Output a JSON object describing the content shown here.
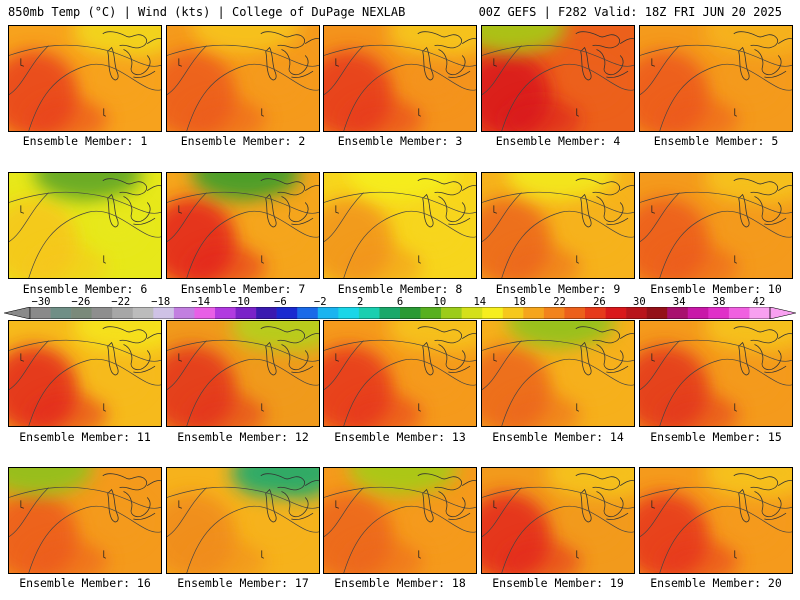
{
  "header": {
    "left": "850mb Temp (°C) | Wind (kts) | College of DuPage NEXLAB",
    "right": "00Z GEFS | F282 Valid: 18Z FRI JUN 20 2025"
  },
  "members": [
    {
      "label": "Ensemble Member: 1",
      "base": "#f7a21d",
      "warm": "#e8401b",
      "cool": "#f2d81e",
      "coolSide": "ne"
    },
    {
      "label": "Ensemble Member: 2",
      "base": "#f59a1c",
      "warm": "#ec5a1b",
      "cool": "#f7c51c",
      "coolSide": "n"
    },
    {
      "label": "Ensemble Member: 3",
      "base": "#f4931c",
      "warm": "#e6391a",
      "cool": "#f6c81c",
      "coolSide": "ne"
    },
    {
      "label": "Ensemble Member: 4",
      "base": "#ec601b",
      "warm": "#d9181b",
      "cool": "#a5cc19",
      "coolSide": "nw"
    },
    {
      "label": "Ensemble Member: 5",
      "base": "#f49a1c",
      "warm": "#ec571b",
      "cool": "#f6b41c",
      "coolSide": "ne"
    },
    {
      "label": "Ensemble Member: 6",
      "base": "#e7e81a",
      "warm": "#f7c51c",
      "cool": "#5fa625",
      "coolSide": "n"
    },
    {
      "label": "Ensemble Member: 7",
      "base": "#f5a51c",
      "warm": "#e3231b",
      "cool": "#3e9e2b",
      "coolSide": "n"
    },
    {
      "label": "Ensemble Member: 8",
      "base": "#f7d51d",
      "warm": "#f2921c",
      "cool": "#f5ef1e",
      "coolSide": "n"
    },
    {
      "label": "Ensemble Member: 9",
      "base": "#f6b21c",
      "warm": "#ec651b",
      "cool": "#f3ea1e",
      "coolSide": "n"
    },
    {
      "label": "Ensemble Member: 10",
      "base": "#f49a1c",
      "warm": "#ec5a1b",
      "cool": "#f6c41c",
      "coolSide": "ne"
    },
    {
      "label": "Ensemble Member: 11",
      "base": "#f6ba1c",
      "warm": "#e3261b",
      "cool": "#f5e41e",
      "coolSide": "ne"
    },
    {
      "label": "Ensemble Member: 12",
      "base": "#f09a1c",
      "warm": "#e3301b",
      "cool": "#b4d11a",
      "coolSide": "ne"
    },
    {
      "label": "Ensemble Member: 13",
      "base": "#f59a1c",
      "warm": "#e6361a",
      "cool": "#f6c41c",
      "coolSide": "ne"
    },
    {
      "label": "Ensemble Member: 14",
      "base": "#f6b01c",
      "warm": "#ec651b",
      "cool": "#8fc31e",
      "coolSide": "n"
    },
    {
      "label": "Ensemble Member: 15",
      "base": "#f49a1c",
      "warm": "#e3361b",
      "cool": "#f6c41c",
      "coolSide": "ne"
    },
    {
      "label": "Ensemble Member: 16",
      "base": "#f49a1c",
      "warm": "#ec5a1b",
      "cool": "#8fc31e",
      "coolSide": "nw"
    },
    {
      "label": "Ensemble Member: 17",
      "base": "#f6b21c",
      "warm": "#f08a1c",
      "cool": "#1faa6e",
      "coolSide": "ne"
    },
    {
      "label": "Ensemble Member: 18",
      "base": "#f59a1c",
      "warm": "#ec651b",
      "cool": "#a5cc19",
      "coolSide": "n"
    },
    {
      "label": "Ensemble Member: 19",
      "base": "#f29a1c",
      "warm": "#e3261b",
      "cool": "#f6c41c",
      "coolSide": "ne"
    },
    {
      "label": "Ensemble Member: 20",
      "base": "#f59a1c",
      "warm": "#e6341a",
      "cool": "#f6c41c",
      "coolSide": "ne"
    }
  ],
  "colorbar": {
    "ticks": [
      "-30",
      "-26",
      "-22",
      "-18",
      "-14",
      "-10",
      "-6",
      "-2",
      "2",
      "6",
      "10",
      "14",
      "18",
      "22",
      "26",
      "30",
      "34",
      "38",
      "42"
    ],
    "colors": [
      "#8a8a8a",
      "#6f8f86",
      "#7a8a7a",
      "#8e8e8e",
      "#a7a7a7",
      "#bcbcbc",
      "#cfc2e6",
      "#c27fe0",
      "#e85fe6",
      "#b13ae0",
      "#7a22c8",
      "#3a1ab0",
      "#1a2ad0",
      "#1a6ae8",
      "#1ab4f0",
      "#1ad6e8",
      "#1acfb0",
      "#1aa86a",
      "#2a9a34",
      "#58b020",
      "#9ccc1a",
      "#d4e01a",
      "#f6ee1e",
      "#f6c81c",
      "#f5a51c",
      "#f2831c",
      "#ec601b",
      "#e63a1b",
      "#d9181b",
      "#b8141b",
      "#941018",
      "#a8106e",
      "#c818a8",
      "#e030c8",
      "#f060e0",
      "#f8a0f0"
    ]
  }
}
